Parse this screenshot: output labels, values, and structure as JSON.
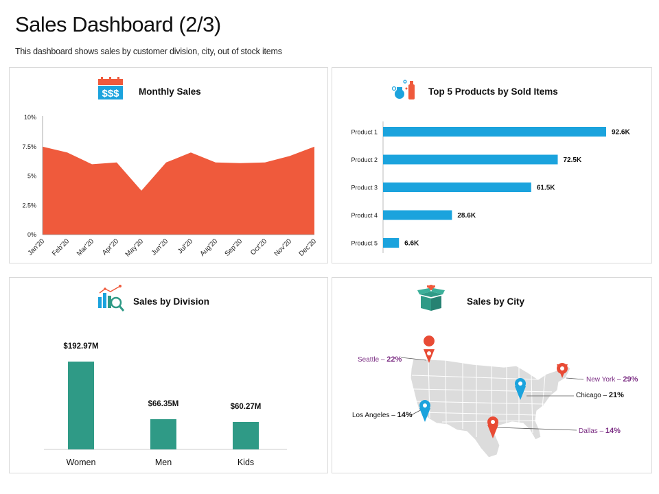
{
  "header": {
    "title": "Sales Dashboard (2/3)",
    "subtitle": "This dashboard shows sales by customer division, city, out of stock items"
  },
  "colors": {
    "area": "#ef5a3c",
    "hbar": "#1ba3dd",
    "vbar": "#2f9a86",
    "pin_red": "#e84b35",
    "pin_blue": "#1ba3dd",
    "map_fill": "#dcdcdc",
    "city_label": "#7b2d83"
  },
  "panels": {
    "monthly": {
      "title": "Monthly Sales",
      "icon": "dollar-calendar-icon"
    },
    "products": {
      "title": "Top 5 Products by Sold Items",
      "icon": "products-icon"
    },
    "division": {
      "title": "Sales by Division",
      "icon": "analytics-icon"
    },
    "city": {
      "title": "Sales by City",
      "icon": "gift-box-icon"
    }
  },
  "chart_data": [
    {
      "type": "area",
      "title": "Monthly Sales",
      "categories": [
        "Jan'20",
        "Feb'20",
        "Mar'20",
        "Apr'20",
        "May'20",
        "Jun'20",
        "Jul'20",
        "Aug'20",
        "Sep'20",
        "Oct'20",
        "Nov'20",
        "Dec'20"
      ],
      "values": [
        7.5,
        7.0,
        6.0,
        6.15,
        3.75,
        6.15,
        7.0,
        6.15,
        6.1,
        6.15,
        6.7,
        7.5
      ],
      "ylim": [
        0,
        10
      ],
      "yticks": [
        "0%",
        "2.5%",
        "5%",
        "7.5%",
        "10%"
      ]
    },
    {
      "type": "bar",
      "orientation": "horizontal",
      "title": "Top 5 Products by Sold Items",
      "categories": [
        "Product 1",
        "Product 2",
        "Product 3",
        "Product 4",
        "Product 5"
      ],
      "values": [
        92.6,
        72.5,
        61.5,
        28.6,
        6.6
      ],
      "labels": [
        "92.6K",
        "72.5K",
        "61.5K",
        "28.6K",
        "6.6K"
      ]
    },
    {
      "type": "bar",
      "title": "Sales by Division",
      "categories": [
        "Women",
        "Men",
        "Kids"
      ],
      "values": [
        192.97,
        66.35,
        60.27
      ],
      "labels": [
        "$192.97M",
        "$66.35M",
        "$60.27M"
      ]
    }
  ],
  "city_sales": [
    {
      "city": "Seattle",
      "pct": "22%",
      "pin": "red"
    },
    {
      "city": "New York",
      "pct": "29%",
      "pin": "red"
    },
    {
      "city": "Chicago",
      "pct": "21%",
      "pin": "blue"
    },
    {
      "city": "Los Angeles",
      "pct": "14%",
      "pin": "blue"
    },
    {
      "city": "Dallas",
      "pct": "14%",
      "pin": "red"
    }
  ]
}
